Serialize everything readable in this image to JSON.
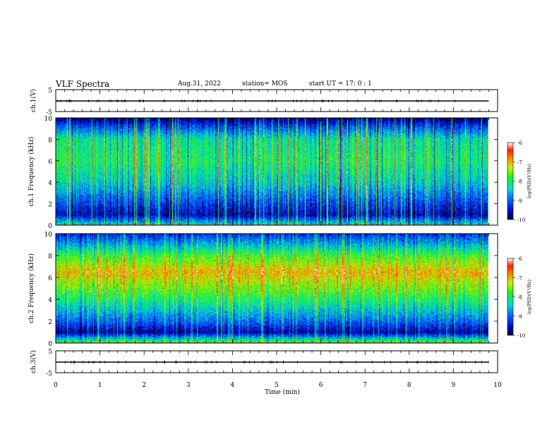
{
  "header": {
    "title": "VLF Spectra",
    "date": "Aug.31, 2022",
    "station": "station= MOS",
    "start_ut": "start  UT =   17: 0  : 1"
  },
  "chart_data": [
    {
      "type": "line",
      "panel": "ch1-waveform",
      "ylabel": "ch.1(V)",
      "yticks": [
        "5",
        "-5"
      ],
      "ylim": [
        -5,
        5
      ],
      "xlim": [
        0,
        10
      ],
      "series": [
        {
          "x": [
            0,
            9.8
          ],
          "values": [
            0,
            0
          ]
        }
      ]
    },
    {
      "type": "heatmap",
      "panel": "ch1-spectrogram",
      "ylabel": "ch.1  Frequency (kHz)",
      "yticks": [
        "0",
        "2",
        "4",
        "6",
        "8",
        "10"
      ],
      "ylim": [
        0,
        10
      ],
      "xlim": [
        0,
        10
      ],
      "data_extent_min": 9.8,
      "colorbar": {
        "label": "log(PSD)(V²/Hz)",
        "ticks": [
          "-6",
          "-7",
          "-8",
          "-9",
          "-10"
        ],
        "range": [
          -10,
          -6
        ]
      },
      "mean_level_profile": [
        {
          "freq_khz": 0.3,
          "level": -8.6
        },
        {
          "freq_khz": 1.0,
          "level": -9.6
        },
        {
          "freq_khz": 2.0,
          "level": -9.2
        },
        {
          "freq_khz": 3.0,
          "level": -8.8
        },
        {
          "freq_khz": 4.0,
          "level": -8.4
        },
        {
          "freq_khz": 6.0,
          "level": -8.0
        },
        {
          "freq_khz": 8.0,
          "level": -8.2
        },
        {
          "freq_khz": 9.3,
          "level": -9.2
        },
        {
          "freq_khz": 10.0,
          "level": -9.9
        }
      ]
    },
    {
      "type": "heatmap",
      "panel": "ch2-spectrogram",
      "ylabel": "ch.2  Frequency (kHz)",
      "yticks": [
        "0",
        "2",
        "4",
        "6",
        "8",
        "10"
      ],
      "ylim": [
        0,
        10
      ],
      "xlim": [
        0,
        10
      ],
      "data_extent_min": 9.8,
      "colorbar": {
        "label": "log(PSD)(V²/Hz)",
        "ticks": [
          "-6",
          "-7",
          "-8",
          "-9",
          "-10"
        ],
        "range": [
          -10,
          -6
        ]
      },
      "mean_level_profile": [
        {
          "freq_khz": 0.3,
          "level": -8.2
        },
        {
          "freq_khz": 1.0,
          "level": -9.7
        },
        {
          "freq_khz": 2.0,
          "level": -9.0
        },
        {
          "freq_khz": 3.0,
          "level": -8.5
        },
        {
          "freq_khz": 4.5,
          "level": -7.8
        },
        {
          "freq_khz": 6.5,
          "level": -7.0
        },
        {
          "freq_khz": 8.0,
          "level": -7.8
        },
        {
          "freq_khz": 9.0,
          "level": -8.6
        },
        {
          "freq_khz": 10.0,
          "level": -9.3
        }
      ]
    },
    {
      "type": "line",
      "panel": "ch3-waveform",
      "ylabel": "ch.3(V)",
      "yticks": [
        "5",
        "-5"
      ],
      "ylim": [
        -5,
        5
      ],
      "xlim": [
        0,
        10
      ],
      "series": [
        {
          "x": [
            0,
            9.8
          ],
          "values": [
            0,
            0
          ]
        }
      ]
    }
  ],
  "x_axis": {
    "label": "Time  (min)",
    "ticks": [
      "0",
      "1",
      "2",
      "3",
      "4",
      "5",
      "6",
      "7",
      "8",
      "9",
      "10"
    ],
    "range": [
      0,
      10
    ]
  },
  "colors": {
    "colormap": [
      "#00004a",
      "#0000c8",
      "#0050ff",
      "#00d0ff",
      "#00f060",
      "#b0f000",
      "#ffb000",
      "#ff3000",
      "#ffffff"
    ]
  }
}
